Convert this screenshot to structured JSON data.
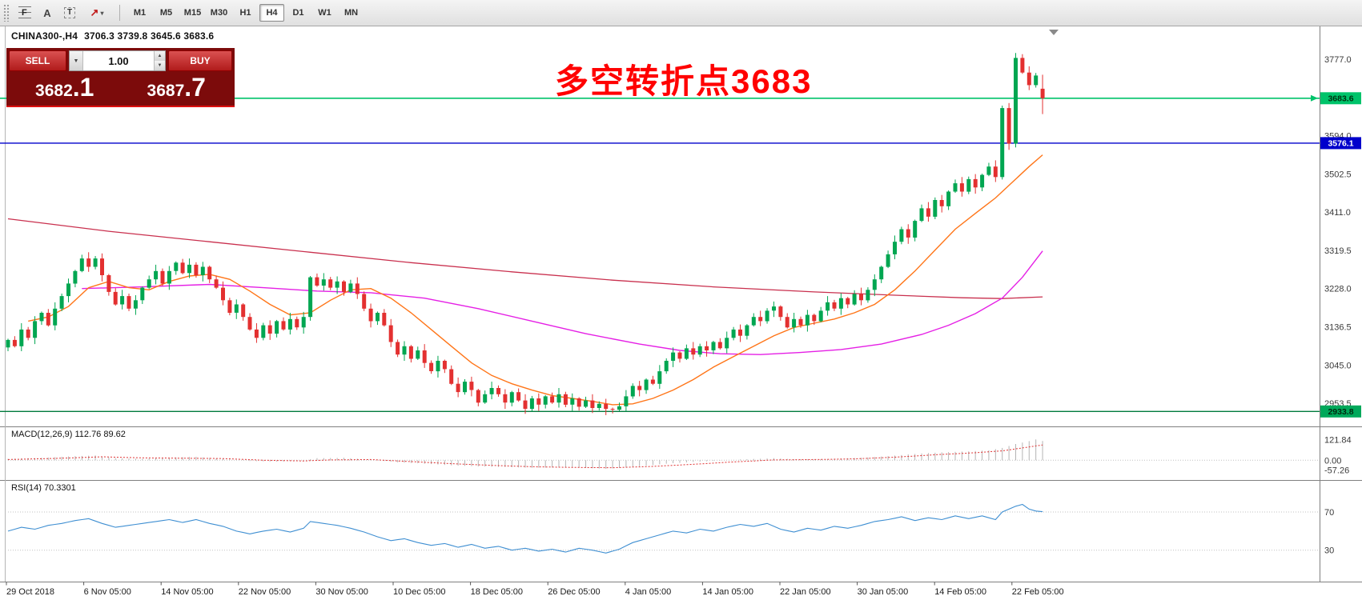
{
  "colors": {
    "annotation": "#ff0000",
    "panel_bg": "#7c0b0b",
    "trade_button_red": "#d02020",
    "toolbar_bg": "#f4f4f4"
  },
  "toolbar": {
    "tools": [
      {
        "name": "fibonacci-tool",
        "glyph": "F"
      },
      {
        "name": "text-tool",
        "glyph": "A"
      },
      {
        "name": "text-label-tool",
        "glyph": "T"
      },
      {
        "name": "arrows-tool",
        "glyph": "↗",
        "caret": "▾"
      }
    ],
    "timeframes": [
      {
        "label": "M1"
      },
      {
        "label": "M5"
      },
      {
        "label": "M15"
      },
      {
        "label": "M30"
      },
      {
        "label": "H1"
      },
      {
        "label": "H4",
        "active": true
      },
      {
        "label": "D1"
      },
      {
        "label": "W1"
      },
      {
        "label": "MN"
      }
    ]
  },
  "chart": {
    "symbol": "CHINA300-,H4",
    "ohlc_readout": "3706.3 3739.8 3645.6 3683.6",
    "annotation": "多空转折点3683"
  },
  "trade_panel": {
    "sell_label": "SELL",
    "buy_label": "BUY",
    "volume": "1.00",
    "sell_price_base": "3682",
    "sell_price_big": ".1",
    "buy_price_base": "3687",
    "buy_price_big": ".7"
  },
  "indicators": {
    "macd": {
      "label": "MACD(12,26,9) 112.76 89.62",
      "axis": [
        "121.84",
        "0.00",
        "-57.26"
      ]
    },
    "rsi": {
      "label": "RSI(14) 70.3301",
      "axis": [
        "70",
        "30"
      ]
    }
  },
  "price_axis": [
    "3777.0",
    "3594.0",
    "3502.5",
    "3411.0",
    "3319.5",
    "3228.0",
    "3136.5",
    "3045.0",
    "2953.5"
  ],
  "levels": [
    {
      "value": 3683.6,
      "label": "3683.6",
      "line_color": "#00c36a",
      "badge_bg": "#00c36a",
      "badge_text_color": "#00300f",
      "width": 1.6,
      "arrow": true
    },
    {
      "value": 3576.1,
      "label": "3576.1",
      "line_color": "#0000cc",
      "badge_bg": "#0000cc",
      "badge_text_color": "#ffffff",
      "width": 1.4,
      "arrow": false
    },
    {
      "value": 2933.8,
      "label": "2933.8",
      "line_color": "#007a3d",
      "badge_bg": "#00a85a",
      "badge_text_color": "#00290f",
      "width": 1.4,
      "arrow": false
    }
  ],
  "time_axis": [
    "29 Oct 2018",
    "6 Nov 05:00",
    "14 Nov 05:00",
    "22 Nov 05:00",
    "30 Nov 05:00",
    "10 Dec 05:00",
    "18 Dec 05:00",
    "26 Dec 05:00",
    "4 Jan 05:00",
    "14 Jan 05:00",
    "22 Jan 05:00",
    "30 Jan 05:00",
    "14 Feb 05:00",
    "22 Feb 05:00"
  ],
  "chart_data": {
    "type": "candlestick",
    "title": "CHINA300- H4",
    "ylim": [
      2898,
      3855
    ],
    "up_color": "#00a651",
    "down_color": "#e33030",
    "closes": [
      3105,
      3090,
      3130,
      3110,
      3150,
      3170,
      3140,
      3180,
      3210,
      3240,
      3270,
      3300,
      3280,
      3300,
      3260,
      3220,
      3190,
      3210,
      3180,
      3200,
      3230,
      3250,
      3270,
      3240,
      3270,
      3290,
      3265,
      3285,
      3260,
      3280,
      3250,
      3230,
      3200,
      3170,
      3190,
      3160,
      3130,
      3110,
      3140,
      3120,
      3150,
      3130,
      3155,
      3135,
      3160,
      3255,
      3235,
      3250,
      3230,
      3245,
      3220,
      3240,
      3215,
      3180,
      3150,
      3170,
      3140,
      3100,
      3070,
      3090,
      3060,
      3080,
      3050,
      3030,
      3055,
      3035,
      3000,
      2980,
      3005,
      2985,
      2955,
      2975,
      2990,
      2975,
      2955,
      2980,
      2960,
      2940,
      2965,
      2950,
      2970,
      2955,
      2975,
      2950,
      2965,
      2945,
      2960,
      2942,
      2952,
      2940,
      2938,
      2946,
      2970,
      2995,
      2985,
      3010,
      3000,
      3030,
      3055,
      3075,
      3060,
      3085,
      3070,
      3090,
      3080,
      3100,
      3085,
      3110,
      3130,
      3115,
      3140,
      3160,
      3150,
      3175,
      3185,
      3160,
      3135,
      3155,
      3140,
      3165,
      3150,
      3175,
      3195,
      3180,
      3205,
      3190,
      3215,
      3200,
      3225,
      3250,
      3280,
      3310,
      3340,
      3370,
      3350,
      3390,
      3420,
      3400,
      3440,
      3425,
      3460,
      3480,
      3460,
      3490,
      3470,
      3500,
      3520,
      3495,
      3660,
      3575,
      3780,
      3745,
      3715,
      3738,
      3683.6
    ],
    "last_candle_ohlc": [
      3706.3,
      3739.8,
      3645.6,
      3683.6
    ],
    "spike": {
      "index": 150,
      "high": 3792
    },
    "ma_fast": {
      "name": "MA fast (orange)",
      "color": "#ff7518",
      "points": [
        [
          3,
          3150
        ],
        [
          6,
          3160
        ],
        [
          9,
          3185
        ],
        [
          12,
          3230
        ],
        [
          15,
          3245
        ],
        [
          18,
          3230
        ],
        [
          21,
          3225
        ],
        [
          24,
          3245
        ],
        [
          27,
          3258
        ],
        [
          30,
          3262
        ],
        [
          33,
          3250
        ],
        [
          36,
          3222
        ],
        [
          39,
          3190
        ],
        [
          42,
          3165
        ],
        [
          45,
          3170
        ],
        [
          48,
          3200
        ],
        [
          51,
          3225
        ],
        [
          54,
          3228
        ],
        [
          57,
          3205
        ],
        [
          60,
          3170
        ],
        [
          63,
          3130
        ],
        [
          66,
          3090
        ],
        [
          69,
          3050
        ],
        [
          72,
          3020
        ],
        [
          75,
          3000
        ],
        [
          78,
          2985
        ],
        [
          81,
          2972
        ],
        [
          84,
          2965
        ],
        [
          87,
          2958
        ],
        [
          90,
          2950
        ],
        [
          93,
          2952
        ],
        [
          96,
          2965
        ],
        [
          99,
          2985
        ],
        [
          102,
          3010
        ],
        [
          105,
          3040
        ],
        [
          108,
          3065
        ],
        [
          111,
          3090
        ],
        [
          114,
          3115
        ],
        [
          117,
          3135
        ],
        [
          120,
          3145
        ],
        [
          123,
          3155
        ],
        [
          126,
          3170
        ],
        [
          129,
          3190
        ],
        [
          132,
          3225
        ],
        [
          135,
          3270
        ],
        [
          138,
          3320
        ],
        [
          141,
          3370
        ],
        [
          144,
          3408
        ],
        [
          147,
          3445
        ],
        [
          150,
          3490
        ],
        [
          152,
          3520
        ],
        [
          154,
          3548
        ]
      ]
    },
    "ma_mid": {
      "name": "MA mid (magenta)",
      "color": "#e520e5",
      "points": [
        [
          11,
          3228
        ],
        [
          20,
          3232
        ],
        [
          30,
          3238
        ],
        [
          38,
          3230
        ],
        [
          46,
          3222
        ],
        [
          54,
          3218
        ],
        [
          62,
          3205
        ],
        [
          70,
          3180
        ],
        [
          78,
          3150
        ],
        [
          86,
          3120
        ],
        [
          94,
          3095
        ],
        [
          100,
          3080
        ],
        [
          106,
          3072
        ],
        [
          112,
          3070
        ],
        [
          118,
          3075
        ],
        [
          124,
          3082
        ],
        [
          130,
          3095
        ],
        [
          136,
          3118
        ],
        [
          140,
          3140
        ],
        [
          144,
          3168
        ],
        [
          148,
          3205
        ],
        [
          151,
          3255
        ],
        [
          154,
          3318
        ]
      ]
    },
    "ma_slow": {
      "name": "MA slow (crimson)",
      "color": "#c9304e",
      "points": [
        [
          0,
          3395
        ],
        [
          15,
          3365
        ],
        [
          30,
          3340
        ],
        [
          45,
          3315
        ],
        [
          60,
          3290
        ],
        [
          75,
          3268
        ],
        [
          90,
          3248
        ],
        [
          105,
          3232
        ],
        [
          120,
          3220
        ],
        [
          132,
          3212
        ],
        [
          142,
          3206
        ],
        [
          148,
          3204
        ],
        [
          154,
          3208
        ]
      ]
    },
    "macd": {
      "hist_color": "#b4b4b4",
      "signal_color": "#e03333",
      "hist_points": [
        [
          0,
          8
        ],
        [
          5,
          14
        ],
        [
          10,
          24
        ],
        [
          13,
          28
        ],
        [
          16,
          12
        ],
        [
          20,
          8
        ],
        [
          24,
          16
        ],
        [
          28,
          20
        ],
        [
          32,
          8
        ],
        [
          36,
          -4
        ],
        [
          40,
          -8
        ],
        [
          44,
          -2
        ],
        [
          46,
          12
        ],
        [
          50,
          14
        ],
        [
          54,
          4
        ],
        [
          58,
          -12
        ],
        [
          62,
          -20
        ],
        [
          66,
          -30
        ],
        [
          70,
          -36
        ],
        [
          74,
          -40
        ],
        [
          78,
          -44
        ],
        [
          82,
          -42
        ],
        [
          86,
          -45
        ],
        [
          89,
          -50
        ],
        [
          92,
          -42
        ],
        [
          95,
          -32
        ],
        [
          98,
          -20
        ],
        [
          102,
          -10
        ],
        [
          106,
          -2
        ],
        [
          110,
          6
        ],
        [
          114,
          12
        ],
        [
          117,
          6
        ],
        [
          120,
          4
        ],
        [
          124,
          10
        ],
        [
          128,
          16
        ],
        [
          131,
          24
        ],
        [
          134,
          34
        ],
        [
          137,
          42
        ],
        [
          140,
          48
        ],
        [
          143,
          52
        ],
        [
          146,
          58
        ],
        [
          148,
          72
        ],
        [
          150,
          95
        ],
        [
          152,
          112
        ],
        [
          153,
          121.84
        ],
        [
          154,
          112.76
        ]
      ],
      "signal_points": [
        [
          0,
          4
        ],
        [
          8,
          12
        ],
        [
          14,
          20
        ],
        [
          20,
          14
        ],
        [
          26,
          12
        ],
        [
          32,
          10
        ],
        [
          38,
          0
        ],
        [
          44,
          -4
        ],
        [
          48,
          2
        ],
        [
          54,
          4
        ],
        [
          60,
          -8
        ],
        [
          66,
          -20
        ],
        [
          72,
          -30
        ],
        [
          78,
          -38
        ],
        [
          84,
          -42
        ],
        [
          90,
          -44
        ],
        [
          96,
          -36
        ],
        [
          102,
          -24
        ],
        [
          108,
          -10
        ],
        [
          114,
          2
        ],
        [
          120,
          4
        ],
        [
          126,
          8
        ],
        [
          132,
          18
        ],
        [
          138,
          32
        ],
        [
          144,
          44
        ],
        [
          148,
          55
        ],
        [
          151,
          72
        ],
        [
          153,
          84
        ],
        [
          154,
          89.62
        ]
      ]
    },
    "rsi": {
      "color": "#3f8fd2",
      "levels": [
        70,
        30
      ],
      "points": [
        [
          0,
          50
        ],
        [
          2,
          54
        ],
        [
          4,
          52
        ],
        [
          6,
          56
        ],
        [
          8,
          58
        ],
        [
          10,
          61
        ],
        [
          12,
          63
        ],
        [
          14,
          58
        ],
        [
          16,
          54
        ],
        [
          18,
          56
        ],
        [
          20,
          58
        ],
        [
          22,
          60
        ],
        [
          24,
          62
        ],
        [
          26,
          59
        ],
        [
          28,
          62
        ],
        [
          30,
          58
        ],
        [
          32,
          55
        ],
        [
          34,
          50
        ],
        [
          36,
          47
        ],
        [
          38,
          50
        ],
        [
          40,
          52
        ],
        [
          42,
          49
        ],
        [
          44,
          53
        ],
        [
          45,
          60
        ],
        [
          47,
          58
        ],
        [
          49,
          56
        ],
        [
          51,
          53
        ],
        [
          53,
          49
        ],
        [
          55,
          44
        ],
        [
          57,
          40
        ],
        [
          59,
          42
        ],
        [
          61,
          38
        ],
        [
          63,
          35
        ],
        [
          65,
          37
        ],
        [
          67,
          33
        ],
        [
          69,
          36
        ],
        [
          71,
          32
        ],
        [
          73,
          34
        ],
        [
          75,
          30
        ],
        [
          77,
          32
        ],
        [
          79,
          29
        ],
        [
          81,
          31
        ],
        [
          83,
          28
        ],
        [
          85,
          32
        ],
        [
          87,
          30
        ],
        [
          89,
          27
        ],
        [
          91,
          31
        ],
        [
          93,
          38
        ],
        [
          95,
          42
        ],
        [
          97,
          46
        ],
        [
          99,
          50
        ],
        [
          101,
          48
        ],
        [
          103,
          52
        ],
        [
          105,
          50
        ],
        [
          107,
          54
        ],
        [
          109,
          57
        ],
        [
          111,
          55
        ],
        [
          113,
          58
        ],
        [
          115,
          52
        ],
        [
          117,
          49
        ],
        [
          119,
          53
        ],
        [
          121,
          51
        ],
        [
          123,
          55
        ],
        [
          125,
          53
        ],
        [
          127,
          56
        ],
        [
          129,
          60
        ],
        [
          131,
          62
        ],
        [
          133,
          65
        ],
        [
          135,
          61
        ],
        [
          137,
          64
        ],
        [
          139,
          62
        ],
        [
          141,
          66
        ],
        [
          143,
          63
        ],
        [
          145,
          66
        ],
        [
          147,
          62
        ],
        [
          148,
          70
        ],
        [
          150,
          76
        ],
        [
          151,
          78
        ],
        [
          152,
          73
        ],
        [
          153,
          71
        ],
        [
          154,
          70.33
        ]
      ]
    }
  }
}
